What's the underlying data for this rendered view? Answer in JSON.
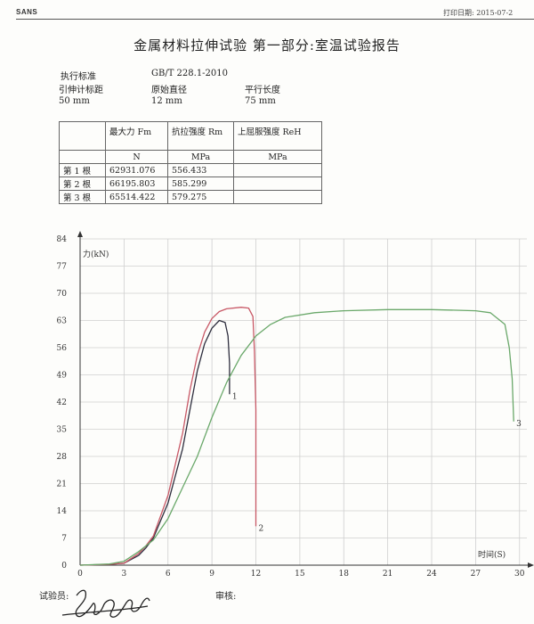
{
  "header": {
    "brand": "SANS",
    "print_date": "打印日期: 2015-07-2"
  },
  "title": "金属材料拉伸试验 第一部分:室温试验报告",
  "meta": {
    "standard_label": "执行标准",
    "standard_value": "GB/T 228.1-2010",
    "gauge_label": "引伸计标距",
    "gauge_value": "50 mm",
    "diameter_label": "原始直径",
    "diameter_value": "12 mm",
    "parallel_label": "平行长度",
    "parallel_value": "75 mm"
  },
  "results_table": {
    "headers": [
      "",
      "最大力 Fm",
      "抗拉强度 Rm",
      "上屈服强度 ReH"
    ],
    "units": [
      "",
      "N",
      "MPa",
      "MPa"
    ],
    "rows": [
      [
        "第 1 根",
        "62931.076",
        "556.433",
        ""
      ],
      [
        "第 2 根",
        "66195.803",
        "585.299",
        ""
      ],
      [
        "第 3 根",
        "65514.422",
        "579.275",
        ""
      ]
    ]
  },
  "chart_data": {
    "type": "line",
    "ylabel": "力(kN)",
    "xlabel": "时间(S)",
    "xlim": [
      0,
      30.5
    ],
    "ylim": [
      0,
      84
    ],
    "x_ticks": [
      0,
      3,
      6,
      9,
      12,
      15,
      18,
      21,
      24,
      27,
      30
    ],
    "y_ticks": [
      0,
      7,
      14,
      21,
      28,
      35,
      42,
      49,
      56,
      63,
      70,
      77,
      84
    ],
    "grid": true,
    "series": [
      {
        "name": "1",
        "color": "#2e2e3e",
        "points": [
          [
            0,
            0
          ],
          [
            2,
            0.2
          ],
          [
            3,
            0.5
          ],
          [
            4,
            2.5
          ],
          [
            4.5,
            4.5
          ],
          [
            5,
            7
          ],
          [
            6,
            16
          ],
          [
            7,
            30
          ],
          [
            7.5,
            40
          ],
          [
            8,
            50
          ],
          [
            8.5,
            57
          ],
          [
            9,
            61
          ],
          [
            9.5,
            63
          ],
          [
            9.9,
            62.5
          ],
          [
            10.1,
            59
          ],
          [
            10.2,
            52
          ],
          [
            10.2,
            44
          ]
        ]
      },
      {
        "name": "2",
        "color": "#c85866",
        "points": [
          [
            0,
            0
          ],
          [
            2,
            0.2
          ],
          [
            3,
            0.5
          ],
          [
            4,
            3
          ],
          [
            4.5,
            5
          ],
          [
            5,
            7.5
          ],
          [
            6,
            18
          ],
          [
            7,
            34
          ],
          [
            7.5,
            45
          ],
          [
            8,
            54
          ],
          [
            8.5,
            60
          ],
          [
            9,
            63.5
          ],
          [
            9.5,
            65.3
          ],
          [
            10,
            66
          ],
          [
            11,
            66.4
          ],
          [
            11.5,
            66.2
          ],
          [
            11.8,
            64
          ],
          [
            11.9,
            55
          ],
          [
            12,
            40
          ],
          [
            12,
            25
          ],
          [
            12,
            10
          ]
        ]
      },
      {
        "name": "3",
        "color": "#6aa86a",
        "points": [
          [
            0,
            0
          ],
          [
            2,
            0.3
          ],
          [
            3,
            1
          ],
          [
            4,
            3.5
          ],
          [
            5,
            6.5
          ],
          [
            6,
            12
          ],
          [
            7,
            20
          ],
          [
            8,
            28
          ],
          [
            9,
            38
          ],
          [
            10,
            47
          ],
          [
            11,
            54
          ],
          [
            12,
            59
          ],
          [
            13,
            62
          ],
          [
            14,
            63.8
          ],
          [
            16,
            65
          ],
          [
            18,
            65.5
          ],
          [
            21,
            65.8
          ],
          [
            24,
            65.8
          ],
          [
            27,
            65.5
          ],
          [
            28,
            65
          ],
          [
            29,
            62
          ],
          [
            29.3,
            56
          ],
          [
            29.5,
            48
          ],
          [
            29.6,
            37
          ]
        ]
      }
    ]
  },
  "footer": {
    "tester_label": "试验员:",
    "reviewer_label": "审核:"
  }
}
